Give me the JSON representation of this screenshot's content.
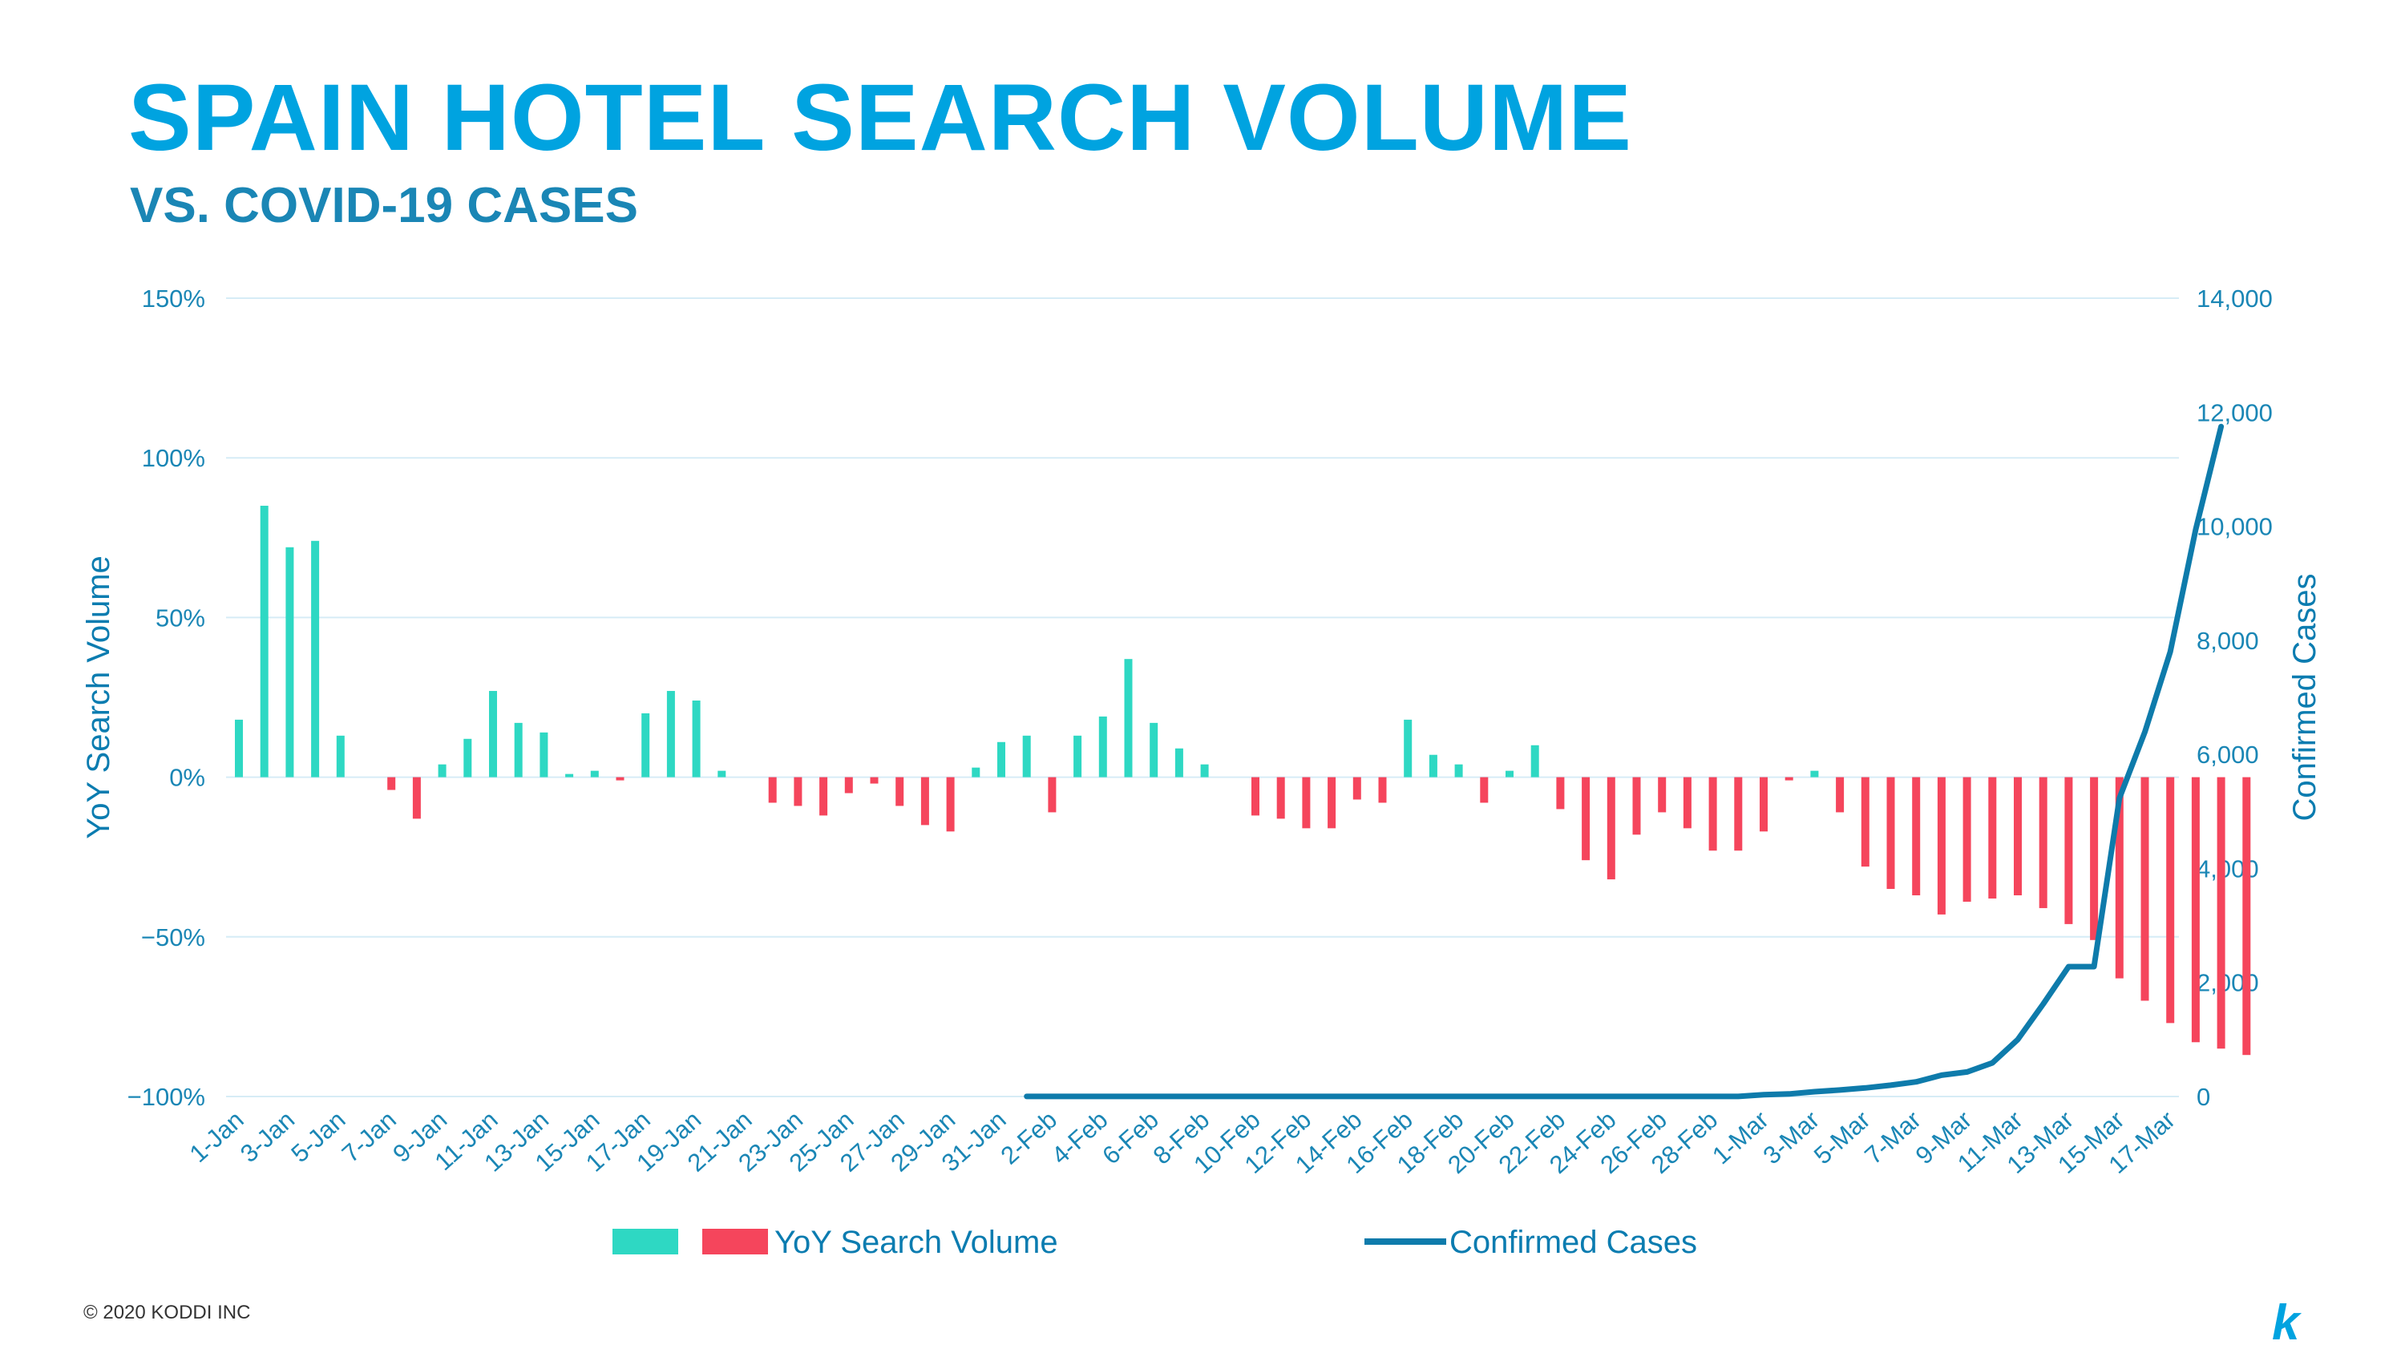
{
  "header": {
    "title": "SPAIN HOTEL SEARCH VOLUME",
    "subtitle": "VS. COVID-19 CASES"
  },
  "footer": {
    "copyright": "© 2020 KODDI INC",
    "logo_text": "k"
  },
  "chart_data": {
    "type": "bar",
    "title": "SPAIN HOTEL SEARCH VOLUME",
    "subtitle": "VS. COVID-19 CASES",
    "ylabel": "YoY Search Volume",
    "y2label": "Confirmed Cases",
    "ylim": [
      -100,
      150
    ],
    "y2lim": [
      0,
      14000
    ],
    "y_ticks": [
      "150%",
      "100%",
      "50%",
      "0%",
      "−50%",
      "−100%"
    ],
    "y_tick_values": [
      150,
      100,
      50,
      0,
      -50,
      -100
    ],
    "y2_ticks": [
      "14,000",
      "12,000",
      "10,000",
      "8,000",
      "6,000",
      "4,000",
      "2,000",
      "0"
    ],
    "y2_tick_values": [
      14000,
      12000,
      10000,
      8000,
      6000,
      4000,
      2000,
      0
    ],
    "grid": true,
    "positive_color": "#2ed8c3",
    "negative_color": "#f5455c",
    "line_color": "#0e7bab",
    "grid_color": "#d6ecf6",
    "legend": {
      "bar_label": "YoY Search Volume",
      "line_label": "Confirmed Cases",
      "placement": "bottom-center"
    },
    "x_tick_labels": [
      "1-Jan",
      "3-Jan",
      "5-Jan",
      "7-Jan",
      "9-Jan",
      "11-Jan",
      "13-Jan",
      "15-Jan",
      "17-Jan",
      "19-Jan",
      "21-Jan",
      "23-Jan",
      "25-Jan",
      "27-Jan",
      "29-Jan",
      "31-Jan",
      "2-Feb",
      "4-Feb",
      "6-Feb",
      "8-Feb",
      "10-Feb",
      "12-Feb",
      "14-Feb",
      "16-Feb",
      "18-Feb",
      "20-Feb",
      "22-Feb",
      "24-Feb",
      "26-Feb",
      "28-Feb",
      "1-Mar",
      "3-Mar",
      "5-Mar",
      "7-Mar",
      "9-Mar",
      "11-Mar",
      "13-Mar",
      "15-Mar",
      "17-Mar"
    ],
    "series": [
      {
        "name": "YoY Search Volume",
        "type": "bar",
        "axis": "left",
        "values": [
          18,
          85,
          72,
          74,
          13,
          0,
          -4,
          -13,
          4,
          12,
          27,
          17,
          14,
          1,
          2,
          -1,
          20,
          27,
          24,
          2,
          0,
          -8,
          -9,
          -12,
          -5,
          -2,
          -9,
          -15,
          -17,
          3,
          11,
          13,
          -11,
          13,
          19,
          37,
          17,
          9,
          4,
          0,
          -12,
          -13,
          -16,
          -16,
          -7,
          -8,
          18,
          7,
          4,
          -8,
          2,
          10,
          -10,
          -26,
          -32,
          -18,
          -11,
          -16,
          -23,
          -23,
          -17,
          -1,
          2,
          -11,
          -28,
          -35,
          -37,
          -43,
          -39,
          -38,
          -37,
          -41,
          -46,
          -51,
          -63,
          -70,
          -77,
          -83,
          -85,
          -87
        ]
      },
      {
        "name": "Confirmed Cases",
        "type": "line",
        "axis": "right",
        "start_index": 31,
        "values": [
          1,
          1,
          1,
          1,
          1,
          1,
          1,
          1,
          1,
          1,
          1,
          1,
          1,
          1,
          1,
          1,
          1,
          1,
          1,
          1,
          1,
          1,
          1,
          1,
          1,
          2,
          2,
          2,
          2,
          32,
          45,
          84,
          114,
          151,
          198,
          257,
          374,
          430,
          589,
          999,
          1622,
          2277,
          2277,
          5232,
          6391,
          7798,
          9942,
          11748
        ]
      }
    ]
  }
}
